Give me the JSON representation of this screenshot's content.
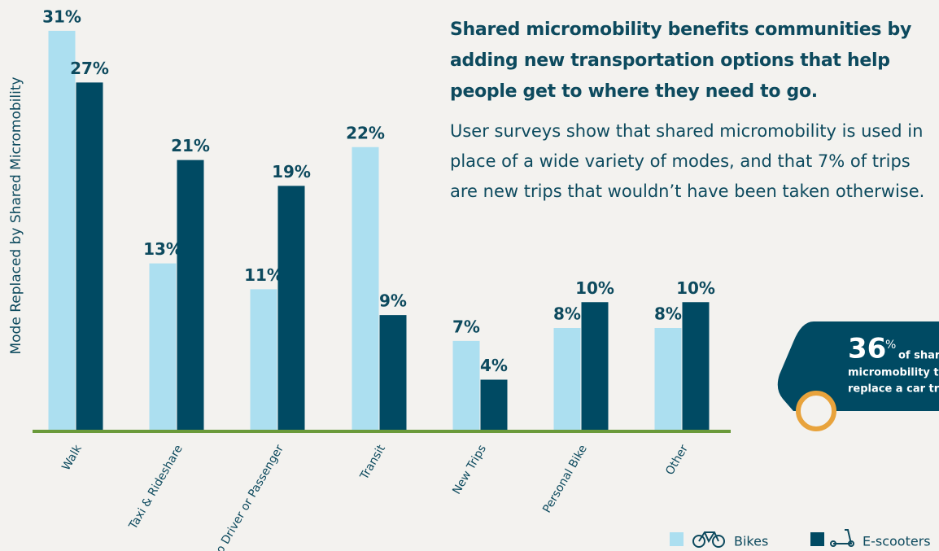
{
  "chart_data": {
    "type": "bar",
    "y_label": "Mode Replaced by Shared Micromobility",
    "categories": [
      "Walk",
      "Taxi & Rideshare",
      "Auto Driver or Passenger",
      "Transit",
      "New Trips",
      "Personal Bike",
      "Other"
    ],
    "series": [
      {
        "name": "Bikes",
        "color": "#acdff0",
        "values": [
          31,
          13,
          11,
          22,
          7,
          8,
          8
        ],
        "value_labels": [
          "31%",
          "13%",
          "11%",
          "22%",
          "7%",
          "8%",
          "8%"
        ]
      },
      {
        "name": "E-scooters",
        "color": "#004a63",
        "values": [
          27,
          21,
          19,
          9,
          4,
          10,
          10
        ],
        "value_labels": [
          "27%",
          "21%",
          "19%",
          "9%",
          "4%",
          "10%",
          "10%"
        ]
      }
    ],
    "ylim": [
      0,
      32
    ]
  },
  "text": {
    "heading": "Shared micromobility benefits communities by adding new transportation options that help people get to where they need to go.",
    "body": "User surveys show that shared micromobility is used in place of a wide variety of modes, and that 7% of trips are new trips that wouldn’t have been taken otherwise."
  },
  "callout": {
    "number": "36",
    "unit": "%",
    "line1": "of shared",
    "line2": "micromobility trips",
    "line3": "replace a car trip"
  }
}
